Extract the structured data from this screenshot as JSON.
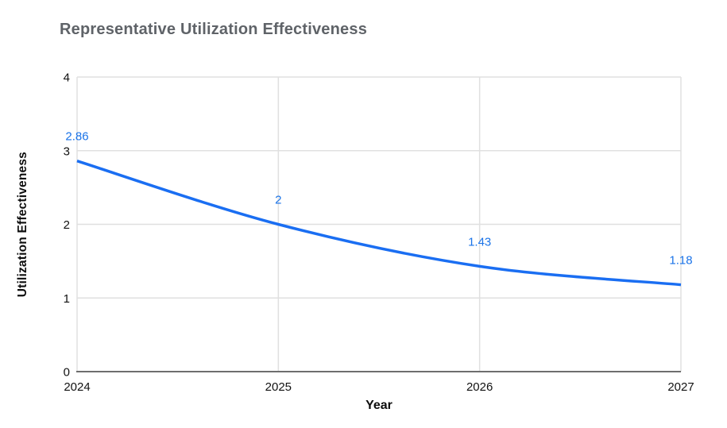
{
  "chart_data": {
    "type": "line",
    "title": "Representative Utilization Effectiveness",
    "xlabel": "Year",
    "ylabel": "Utilization Effectiveness",
    "x": [
      2024,
      2025,
      2026,
      2027
    ],
    "series": [
      {
        "name": "Utilization Effectiveness",
        "values": [
          2.86,
          2,
          1.43,
          1.18
        ]
      }
    ],
    "point_labels": [
      "2.86",
      "2",
      "1.43",
      "1.18"
    ],
    "ylim": [
      0,
      4
    ],
    "yticks": [
      0,
      1,
      2,
      3,
      4
    ],
    "grid": true,
    "legend": "none",
    "line_style": "smooth",
    "colors": {
      "line": "#1a6ef2",
      "data_label": "#1a73e8",
      "title": "#5f6368",
      "axis": "#6e6e6e",
      "grid": "#e0e0e0",
      "tick_label": "#111111"
    }
  }
}
